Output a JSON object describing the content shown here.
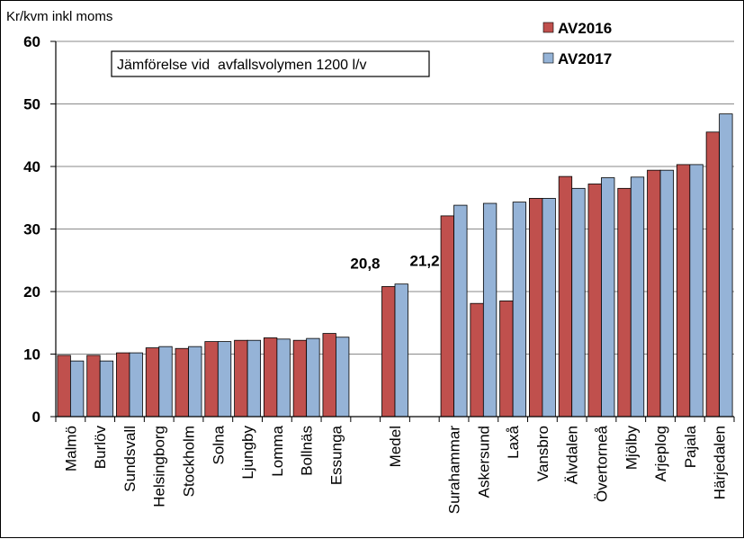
{
  "chart_data": {
    "type": "bar",
    "ylabel": "Kr/kvm inkl moms",
    "ylim": [
      0,
      60
    ],
    "yticks": [
      0,
      10,
      20,
      30,
      40,
      50,
      60
    ],
    "grid": true,
    "legend_position": "top-right",
    "annotation": "Jämförelse vid  avfallsvolymen 1200 l/v",
    "categories": [
      "Malmö",
      "Burlöv",
      "Sundsvall",
      "Helsingborg",
      "Stockholm",
      "Solna",
      "Ljungby",
      "Lomma",
      "Bollnäs",
      "Essunga",
      "",
      "Medel",
      "",
      "Surahammar",
      "Askersund",
      "Laxå",
      "Vansbro",
      "Älvdalen",
      "Övertorneå",
      "Mjölby",
      "Arjeplog",
      "Pajala",
      "Härjedalen"
    ],
    "series": [
      {
        "name": "AV2016",
        "color": "#c0504d",
        "values": [
          9.8,
          9.8,
          10.2,
          11.0,
          10.9,
          12.0,
          12.2,
          12.6,
          12.2,
          13.3,
          null,
          20.8,
          null,
          32.1,
          18.1,
          18.5,
          34.9,
          38.4,
          37.2,
          36.5,
          39.4,
          40.3,
          45.5
        ]
      },
      {
        "name": "AV2017",
        "color": "#95b3d7",
        "values": [
          8.9,
          8.9,
          10.2,
          11.2,
          11.2,
          12.0,
          12.2,
          12.4,
          12.5,
          12.7,
          null,
          21.2,
          null,
          33.8,
          34.1,
          34.3,
          34.9,
          36.5,
          38.2,
          38.3,
          39.4,
          40.3,
          48.4
        ]
      }
    ],
    "data_labels": [
      {
        "text": "20,8",
        "category": "Medel",
        "series": "AV2016"
      },
      {
        "text": "21,2",
        "category": "Medel",
        "series": "AV2017"
      }
    ]
  }
}
